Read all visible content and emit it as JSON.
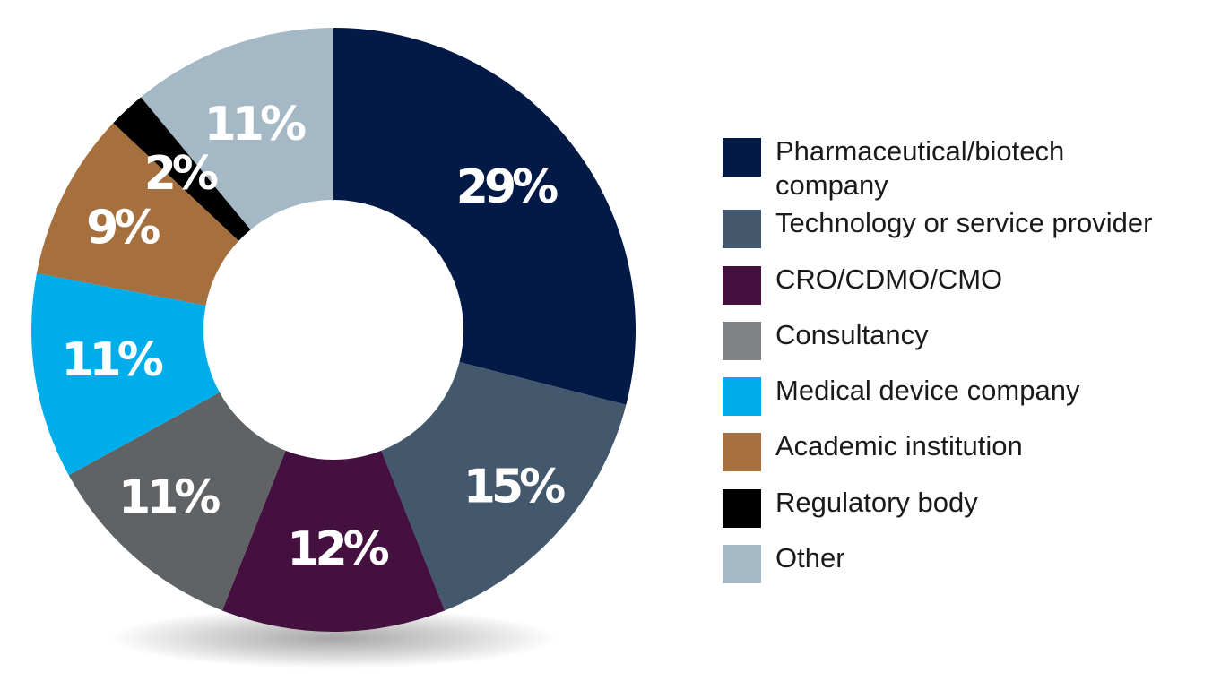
{
  "chart_data": {
    "type": "pie",
    "variant": "donut",
    "categories": [
      "Pharmaceutical/biotech company",
      "Technology or service provider",
      "CRO/CDMO/CMO",
      "Consultancy",
      "Medical device company",
      "Academic institution",
      "Regulatory body",
      "Other"
    ],
    "values": [
      29,
      15,
      12,
      11,
      11,
      9,
      2,
      11
    ],
    "data_labels": [
      "29%",
      "15%",
      "12%",
      "11%",
      "11%",
      "9%",
      "2%",
      "11%"
    ],
    "colors": [
      "#021a45",
      "#43586d",
      "#44103f",
      "#606365",
      "#00adeb",
      "#a56f3e",
      "#000000",
      "#a5b8c5"
    ],
    "legend_placement": "right",
    "start_angle": "top, clockwise"
  },
  "legend": {
    "items": [
      {
        "label": "Pharmaceutical/biotech company",
        "lines": [
          "Pharmaceutical/biotech",
          "company"
        ],
        "color": "#021a45"
      },
      {
        "label": "Technology or service provider",
        "lines": [
          "Technology or service provider"
        ],
        "color": "#43586d"
      },
      {
        "label": "CRO/CDMO/CMO",
        "lines": [
          "CRO/CDMO/CMO"
        ],
        "color": "#44103f"
      },
      {
        "label": "Consultancy",
        "lines": [
          "Consultancy"
        ],
        "color": "#808286"
      },
      {
        "label": "Medical device company",
        "lines": [
          "Medical device company"
        ],
        "color": "#00adeb"
      },
      {
        "label": "Academic institution",
        "lines": [
          "Academic institution"
        ],
        "color": "#a56f3e"
      },
      {
        "label": "Regulatory body",
        "lines": [
          "Regulatory body"
        ],
        "color": "#000000"
      },
      {
        "label": "Other",
        "lines": [
          "Other"
        ],
        "color": "#a5b8c5"
      }
    ]
  }
}
